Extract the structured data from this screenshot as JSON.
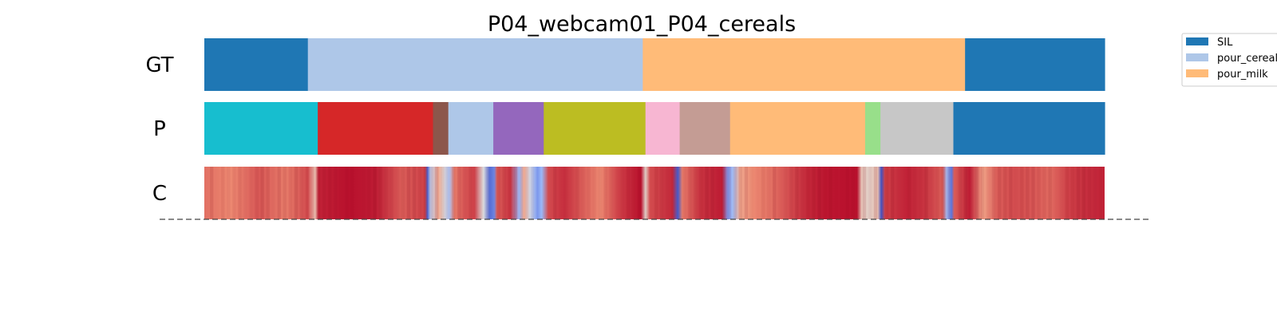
{
  "chart_data": {
    "type": "segmentation",
    "title": "P04_webcam01_P04_cereals",
    "legend": {
      "placement": "top-right",
      "entries": [
        {
          "name": "SIL",
          "color": "#1f77b4"
        },
        {
          "name": "pour_cereals",
          "color": "#aec7e8"
        },
        {
          "name": "pour_milk",
          "color": "#ffbb78"
        }
      ]
    },
    "rows": [
      {
        "label": "GT",
        "kind": "segments",
        "segments": [
          {
            "start": 0.0,
            "end": 0.115,
            "color": "#1f77b4"
          },
          {
            "start": 0.115,
            "end": 0.487,
            "color": "#aec7e8"
          },
          {
            "start": 0.487,
            "end": 0.845,
            "color": "#ffbb78"
          },
          {
            "start": 0.845,
            "end": 1.0,
            "color": "#1f77b4"
          }
        ]
      },
      {
        "label": "P",
        "kind": "segments",
        "segments": [
          {
            "start": 0.0,
            "end": 0.126,
            "color": "#17becf"
          },
          {
            "start": 0.126,
            "end": 0.254,
            "color": "#d62728"
          },
          {
            "start": 0.254,
            "end": 0.271,
            "color": "#8c564b"
          },
          {
            "start": 0.271,
            "end": 0.321,
            "color": "#aec7e8"
          },
          {
            "start": 0.321,
            "end": 0.377,
            "color": "#9467bd"
          },
          {
            "start": 0.377,
            "end": 0.49,
            "color": "#bcbd22"
          },
          {
            "start": 0.49,
            "end": 0.528,
            "color": "#f7b6d2"
          },
          {
            "start": 0.528,
            "end": 0.584,
            "color": "#c49c94"
          },
          {
            "start": 0.584,
            "end": 0.734,
            "color": "#ffbb78"
          },
          {
            "start": 0.734,
            "end": 0.751,
            "color": "#98df8a"
          },
          {
            "start": 0.751,
            "end": 0.832,
            "color": "#c7c7c7"
          },
          {
            "start": 0.832,
            "end": 1.0,
            "color": "#1f77b4"
          }
        ]
      },
      {
        "label": "C",
        "kind": "confidence",
        "colormap": "coolwarm",
        "points": [
          [
            0.0,
            0.82
          ],
          [
            0.03,
            0.78
          ],
          [
            0.06,
            0.86
          ],
          [
            0.09,
            0.8
          ],
          [
            0.115,
            0.88
          ],
          [
            0.123,
            0.62
          ],
          [
            0.127,
            0.95
          ],
          [
            0.16,
            0.98
          ],
          [
            0.19,
            0.96
          ],
          [
            0.22,
            0.85
          ],
          [
            0.245,
            0.9
          ],
          [
            0.248,
            0.05
          ],
          [
            0.251,
            0.4
          ],
          [
            0.26,
            0.7
          ],
          [
            0.265,
            0.55
          ],
          [
            0.272,
            0.35
          ],
          [
            0.278,
            0.8
          ],
          [
            0.288,
            0.86
          ],
          [
            0.3,
            0.9
          ],
          [
            0.31,
            0.5
          ],
          [
            0.317,
            0.08
          ],
          [
            0.322,
            0.15
          ],
          [
            0.325,
            0.85
          ],
          [
            0.34,
            0.92
          ],
          [
            0.35,
            0.3
          ],
          [
            0.355,
            0.7
          ],
          [
            0.362,
            0.45
          ],
          [
            0.37,
            0.2
          ],
          [
            0.375,
            0.3
          ],
          [
            0.382,
            0.88
          ],
          [
            0.4,
            0.93
          ],
          [
            0.42,
            0.85
          ],
          [
            0.44,
            0.78
          ],
          [
            0.46,
            0.9
          ],
          [
            0.485,
            0.98
          ],
          [
            0.49,
            0.55
          ],
          [
            0.495,
            0.88
          ],
          [
            0.52,
            0.94
          ],
          [
            0.526,
            0.04
          ],
          [
            0.531,
            0.8
          ],
          [
            0.55,
            0.92
          ],
          [
            0.575,
            0.96
          ],
          [
            0.582,
            0.2
          ],
          [
            0.588,
            0.35
          ],
          [
            0.595,
            0.7
          ],
          [
            0.61,
            0.78
          ],
          [
            0.63,
            0.82
          ],
          [
            0.65,
            0.88
          ],
          [
            0.67,
            0.94
          ],
          [
            0.69,
            0.97
          ],
          [
            0.725,
            0.98
          ],
          [
            0.73,
            0.6
          ],
          [
            0.738,
            0.55
          ],
          [
            0.748,
            0.62
          ],
          [
            0.752,
            0.02
          ],
          [
            0.756,
            0.9
          ],
          [
            0.78,
            0.95
          ],
          [
            0.8,
            0.92
          ],
          [
            0.82,
            0.85
          ],
          [
            0.825,
            0.3
          ],
          [
            0.83,
            0.1
          ],
          [
            0.833,
            0.85
          ],
          [
            0.85,
            0.96
          ],
          [
            0.865,
            0.72
          ],
          [
            0.88,
            0.85
          ],
          [
            0.9,
            0.88
          ],
          [
            0.92,
            0.86
          ],
          [
            0.94,
            0.83
          ],
          [
            0.96,
            0.9
          ],
          [
            0.98,
            0.93
          ],
          [
            1.0,
            0.95
          ]
        ]
      }
    ]
  }
}
